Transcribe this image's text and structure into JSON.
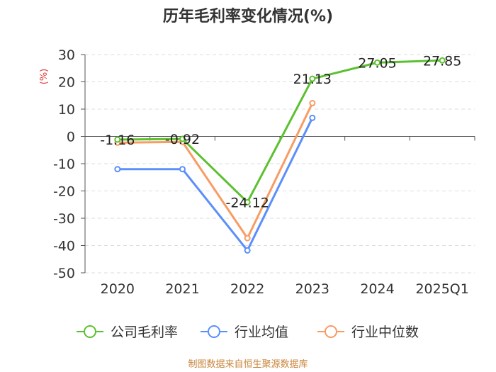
{
  "chart_data": {
    "type": "line",
    "title": "历年毛利率变化情况(%)",
    "ylabel": "(%)",
    "categories": [
      "2020",
      "2021",
      "2022",
      "2023",
      "2024",
      "2025Q1"
    ],
    "ylim": [
      -50,
      30
    ],
    "yticks": [
      30,
      20,
      10,
      0,
      -10,
      -20,
      -30,
      -40,
      -50
    ],
    "grid": true,
    "legend_position": "bottom",
    "series": [
      {
        "name": "公司毛利率",
        "color": "#5cc130",
        "values": [
          -1.16,
          -0.92,
          -24.12,
          21.13,
          27.05,
          27.85
        ],
        "labels": [
          "-1.16",
          "-0.92",
          "-24.12",
          "21.13",
          "27.05",
          "27.85"
        ]
      },
      {
        "name": "行业均值",
        "color": "#5b8ff9",
        "values": [
          -12.0,
          -12.0,
          -41.8,
          6.8,
          null,
          null
        ]
      },
      {
        "name": "行业中位数",
        "color": "#f89c64",
        "values": [
          -2.3,
          -2.0,
          -37.3,
          12.2,
          null,
          null
        ]
      }
    ]
  },
  "source_text": "制图数据来自恒生聚源数据库",
  "colors": {
    "ylabel": "#e23b3b",
    "source": "#c8843a",
    "axis": "#555555",
    "grid": "#dddddd"
  }
}
